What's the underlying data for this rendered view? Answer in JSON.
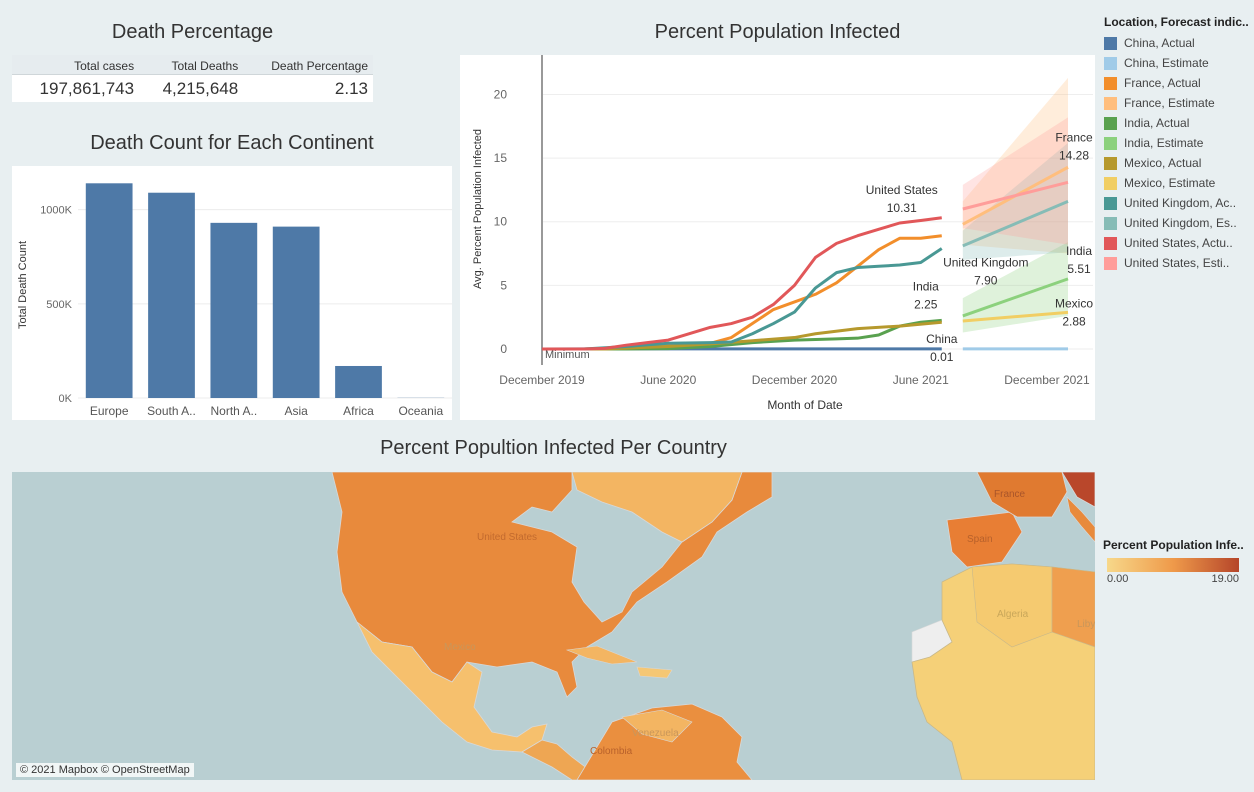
{
  "death_percentage": {
    "title": "Death Percentage",
    "headers": [
      "Total cases",
      "Total Deaths",
      "Death Percentage"
    ],
    "values": [
      "197,861,743",
      "4,215,648",
      "2.13"
    ]
  },
  "continent_chart": {
    "title": "Death Count for Each Continent"
  },
  "infected_chart": {
    "title": "Percent Population Infected"
  },
  "map": {
    "title": "Percent Popultion Infected Per Country",
    "credit": "© 2021 Mapbox © OpenStreetMap",
    "labels": [
      "United States",
      "Mexico",
      "Colombia",
      "Venezuela",
      "France",
      "Spain",
      "Algeria",
      "Libya"
    ]
  },
  "legend": {
    "title": "Location, Forecast indic..",
    "items": [
      {
        "label": "China, Actual",
        "color": "#4e79a7"
      },
      {
        "label": "China, Estimate",
        "color": "#a0cbe8"
      },
      {
        "label": "France, Actual",
        "color": "#f28e2b"
      },
      {
        "label": "France, Estimate",
        "color": "#ffbe7d"
      },
      {
        "label": "India, Actual",
        "color": "#59a14f"
      },
      {
        "label": "India, Estimate",
        "color": "#8cd17d"
      },
      {
        "label": "Mexico, Actual",
        "color": "#b6992d"
      },
      {
        "label": "Mexico, Estimate",
        "color": "#f1ce63"
      },
      {
        "label": "United Kingdom, Ac..",
        "color": "#499894"
      },
      {
        "label": "United Kingdom, Es..",
        "color": "#86bcb6"
      },
      {
        "label": "United States, Actu..",
        "color": "#e15759"
      },
      {
        "label": "United States, Esti..",
        "color": "#ff9d9a"
      }
    ]
  },
  "color_legend": {
    "title": "Percent Population Infe..",
    "min": "0.00",
    "max": "19.00",
    "gradient": [
      "#f7d88a",
      "#ef9a4a",
      "#b5452a"
    ]
  },
  "chart_data": [
    {
      "type": "bar",
      "title": "Death Count for Each Continent",
      "xlabel": "",
      "ylabel": "Total Death Count",
      "categories": [
        "Europe",
        "South A..",
        "North A..",
        "Asia",
        "Africa",
        "Oceania"
      ],
      "values": [
        1140000,
        1090000,
        930000,
        910000,
        170000,
        1000
      ],
      "ylim": [
        0,
        1200000
      ],
      "yticks": [
        0,
        500000,
        1000000
      ],
      "ytick_labels": [
        "0K",
        "500K",
        "1000K"
      ],
      "color": "#4e79a7",
      "grid": true
    },
    {
      "type": "line",
      "title": "Percent Population Infected",
      "xlabel": "Month of Date",
      "ylabel": "Avg. Percent Population Infected",
      "x_ticks": [
        "December 2019",
        "June 2020",
        "December 2020",
        "June 2021",
        "December 2021"
      ],
      "ylim": [
        0,
        22
      ],
      "yticks": [
        0,
        5,
        10,
        15,
        20
      ],
      "annotation": "Minimum",
      "series": [
        {
          "name": "China, Actual",
          "x": [
            "2019-12",
            "2020-02",
            "2020-04",
            "2020-06",
            "2020-08",
            "2020-10",
            "2020-12",
            "2021-02",
            "2021-04",
            "2021-06",
            "2021-07"
          ],
          "y": [
            0,
            0.01,
            0.01,
            0.01,
            0.01,
            0.01,
            0.01,
            0.01,
            0.01,
            0.01,
            0.01
          ],
          "end_label": "China",
          "end_value": "0.01"
        },
        {
          "name": "France, Actual",
          "x": [
            "2019-12",
            "2020-02",
            "2020-03",
            "2020-04",
            "2020-05",
            "2020-06",
            "2020-07",
            "2020-08",
            "2020-09",
            "2020-10",
            "2020-11",
            "2020-12",
            "2021-01",
            "2021-02",
            "2021-03",
            "2021-04",
            "2021-05",
            "2021-06",
            "2021-07"
          ],
          "y": [
            0,
            0,
            0.05,
            0.2,
            0.25,
            0.25,
            0.3,
            0.45,
            0.9,
            2.0,
            3.1,
            3.7,
            4.3,
            5.2,
            6.5,
            7.8,
            8.7,
            8.7,
            8.9
          ]
        },
        {
          "name": "India, Actual",
          "x": [
            "2019-12",
            "2020-02",
            "2020-04",
            "2020-06",
            "2020-08",
            "2020-10",
            "2020-12",
            "2021-02",
            "2021-03",
            "2021-04",
            "2021-05",
            "2021-06",
            "2021-07"
          ],
          "y": [
            0,
            0,
            0,
            0.03,
            0.2,
            0.5,
            0.7,
            0.8,
            0.85,
            1.1,
            1.8,
            2.1,
            2.25
          ],
          "end_label": "India",
          "end_value": "2.25"
        },
        {
          "name": "Mexico, Actual",
          "x": [
            "2019-12",
            "2020-03",
            "2020-06",
            "2020-08",
            "2020-10",
            "2020-12",
            "2021-01",
            "2021-03",
            "2021-05",
            "2021-07"
          ],
          "y": [
            0,
            0,
            0.2,
            0.4,
            0.65,
            0.9,
            1.2,
            1.6,
            1.8,
            2.1
          ]
        },
        {
          "name": "United Kingdom, Actual",
          "x": [
            "2019-12",
            "2020-02",
            "2020-04",
            "2020-06",
            "2020-08",
            "2020-09",
            "2020-10",
            "2020-11",
            "2020-12",
            "2021-01",
            "2021-02",
            "2021-03",
            "2021-04",
            "2021-05",
            "2021-06",
            "2021-07"
          ],
          "y": [
            0,
            0,
            0.2,
            0.45,
            0.5,
            0.55,
            1.2,
            2.0,
            2.9,
            4.8,
            6.0,
            6.4,
            6.5,
            6.6,
            6.8,
            7.9
          ],
          "end_label": "United Kingdom",
          "end_value": "7.90"
        },
        {
          "name": "United States, Actual",
          "x": [
            "2019-12",
            "2020-02",
            "2020-03",
            "2020-04",
            "2020-05",
            "2020-06",
            "2020-07",
            "2020-08",
            "2020-09",
            "2020-10",
            "2020-11",
            "2020-12",
            "2021-01",
            "2021-02",
            "2021-03",
            "2021-04",
            "2021-05",
            "2021-06",
            "2021-07"
          ],
          "y": [
            0,
            0,
            0.05,
            0.3,
            0.5,
            0.7,
            1.2,
            1.7,
            2.0,
            2.5,
            3.5,
            5.0,
            7.2,
            8.3,
            8.9,
            9.4,
            9.9,
            10.1,
            10.31
          ],
          "end_label": "United States",
          "end_value": "10.31"
        },
        {
          "name": "China, Estimate",
          "x": [
            "2021-08",
            "2022-01"
          ],
          "y": [
            0.01,
            0.01
          ]
        },
        {
          "name": "France, Estimate",
          "x": [
            "2021-08",
            "2022-01"
          ],
          "y": [
            9.8,
            14.28
          ],
          "band_upper": [
            11.6,
            21.3
          ],
          "band_lower": [
            8.2,
            7.5
          ],
          "end_label": "France",
          "end_value": "14.28"
        },
        {
          "name": "India, Estimate",
          "x": [
            "2021-08",
            "2022-01"
          ],
          "y": [
            2.6,
            5.51
          ],
          "band_upper": [
            4.0,
            8.4
          ],
          "band_lower": [
            1.3,
            2.6
          ],
          "end_label": "India",
          "end_value": "5.51"
        },
        {
          "name": "Mexico, Estimate",
          "x": [
            "2021-08",
            "2022-01"
          ],
          "y": [
            2.2,
            2.88
          ],
          "end_label": "Mexico",
          "end_value": "2.88"
        },
        {
          "name": "United Kingdom, Estimate",
          "x": [
            "2021-08",
            "2022-01"
          ],
          "y": [
            8.1,
            11.6
          ],
          "band_upper": [
            9.3,
            16.2
          ],
          "band_lower": [
            7.0,
            7.6
          ]
        },
        {
          "name": "United States, Estimate",
          "x": [
            "2021-08",
            "2022-01"
          ],
          "y": [
            11.0,
            13.1
          ],
          "band_upper": [
            12.9,
            18.2
          ],
          "band_lower": [
            9.5,
            8.2
          ]
        }
      ]
    }
  ]
}
